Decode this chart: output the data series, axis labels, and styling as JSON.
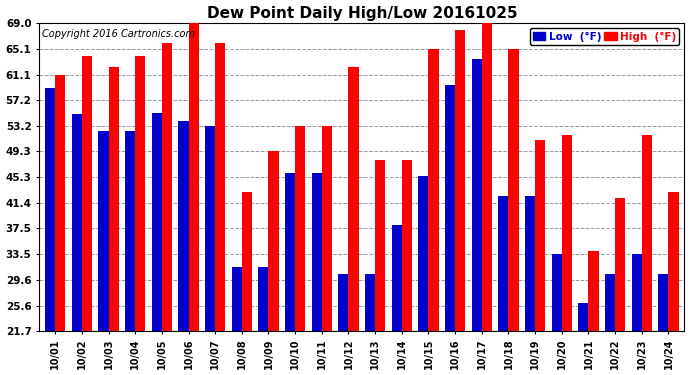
{
  "title": "Dew Point Daily High/Low 20161025",
  "copyright": "Copyright 2016 Cartronics.com",
  "dates": [
    "10/01",
    "10/02",
    "10/03",
    "10/04",
    "10/05",
    "10/06",
    "10/07",
    "10/08",
    "10/09",
    "10/10",
    "10/11",
    "10/12",
    "10/13",
    "10/14",
    "10/15",
    "10/16",
    "10/17",
    "10/18",
    "10/19",
    "10/20",
    "10/21",
    "10/22",
    "10/23",
    "10/24"
  ],
  "high": [
    61.1,
    64.0,
    62.2,
    64.0,
    66.0,
    69.0,
    66.0,
    43.0,
    49.3,
    53.2,
    53.2,
    62.2,
    48.0,
    48.0,
    65.1,
    68.0,
    69.0,
    65.1,
    51.1,
    51.8,
    34.0,
    42.1,
    51.8,
    43.0
  ],
  "low": [
    59.0,
    55.0,
    52.5,
    52.5,
    55.2,
    54.0,
    53.2,
    31.5,
    31.5,
    46.0,
    46.0,
    30.5,
    30.5,
    38.0,
    45.5,
    59.5,
    63.5,
    42.5,
    42.5,
    33.5,
    26.0,
    30.5,
    33.5,
    30.5
  ],
  "yticks": [
    21.7,
    25.6,
    29.6,
    33.5,
    37.5,
    41.4,
    45.3,
    49.3,
    53.2,
    57.2,
    61.1,
    65.1,
    69.0
  ],
  "ymin": 21.7,
  "ymax": 69.0,
  "bar_width": 0.38,
  "high_color": "#FF0000",
  "low_color": "#0000CC",
  "bg_color": "#FFFFFF",
  "grid_color": "#999999",
  "title_fontsize": 11,
  "copyright_fontsize": 7,
  "legend_label_low": "Low  (°F)",
  "legend_label_high": "High  (°F)"
}
